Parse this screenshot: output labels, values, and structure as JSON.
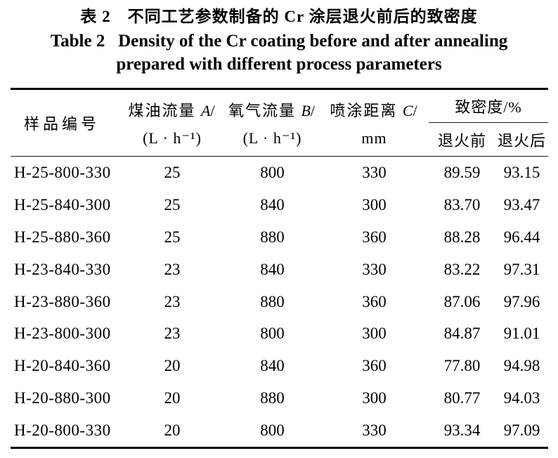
{
  "title": {
    "zh": "表 2　不同工艺参数制备的 Cr 涂层退火前后的致密度",
    "en_line1": "Table 2   Density of the Cr coating before and after annealing",
    "en_line2": "prepared with different process parameters"
  },
  "table": {
    "columns": {
      "sample": "样品编号",
      "kerosene": {
        "label": "煤油流量 ",
        "var": "A",
        "slash": "/",
        "unit": "(L · h⁻¹)"
      },
      "oxygen": {
        "label": "氧气流量 ",
        "var": "B",
        "slash": "/",
        "unit": "(L · h⁻¹)"
      },
      "distance": {
        "label": "喷涂距离 ",
        "var": "C",
        "slash": "/",
        "unit": "mm"
      },
      "density_group": "致密度/%",
      "before": "退火前",
      "after": "退火后"
    },
    "rows": [
      {
        "id": "H-25-800-330",
        "kerosene": "25",
        "oxygen": "800",
        "distance": "330",
        "before": "89.59",
        "after": "93.15"
      },
      {
        "id": "H-25-840-300",
        "kerosene": "25",
        "oxygen": "840",
        "distance": "300",
        "before": "83.70",
        "after": "93.47"
      },
      {
        "id": "H-25-880-360",
        "kerosene": "25",
        "oxygen": "880",
        "distance": "360",
        "before": "88.28",
        "after": "96.44"
      },
      {
        "id": "H-23-840-330",
        "kerosene": "23",
        "oxygen": "840",
        "distance": "330",
        "before": "83.22",
        "after": "97.31"
      },
      {
        "id": "H-23-880-360",
        "kerosene": "23",
        "oxygen": "880",
        "distance": "360",
        "before": "87.06",
        "after": "97.96"
      },
      {
        "id": "H-23-800-300",
        "kerosene": "23",
        "oxygen": "800",
        "distance": "300",
        "before": "84.87",
        "after": "91.01"
      },
      {
        "id": "H-20-840-360",
        "kerosene": "20",
        "oxygen": "840",
        "distance": "360",
        "before": "77.80",
        "after": "94.98"
      },
      {
        "id": "H-20-880-300",
        "kerosene": "20",
        "oxygen": "880",
        "distance": "300",
        "before": "80.77",
        "after": "94.03"
      },
      {
        "id": "H-20-800-330",
        "kerosene": "20",
        "oxygen": "800",
        "distance": "330",
        "before": "93.34",
        "after": "97.09"
      }
    ]
  }
}
